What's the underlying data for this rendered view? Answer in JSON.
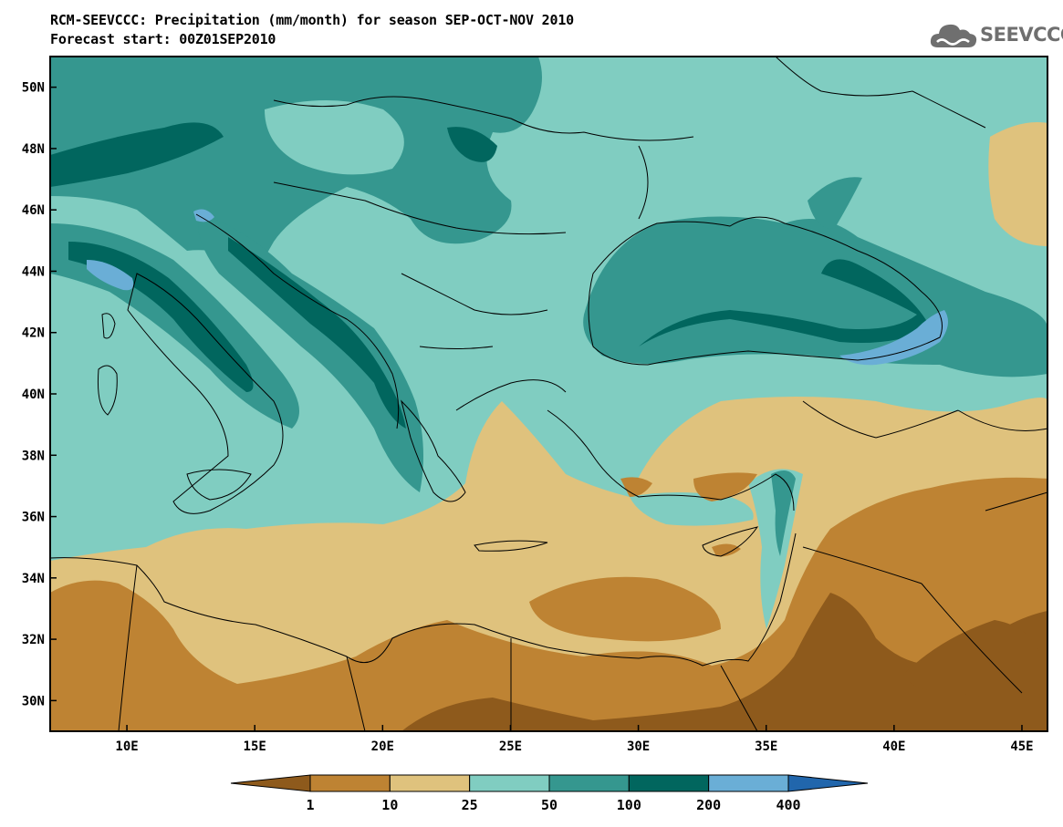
{
  "header": {
    "title_line1": "RCM-SEEVCCC: Precipitation (mm/month) for season SEP-OCT-NOV 2010",
    "title_line2": "Forecast start: 00Z01SEP2010"
  },
  "logo": {
    "text": "SEEVCCC",
    "icon": "cloud-logo-icon"
  },
  "map": {
    "lon_range": [
      7,
      46
    ],
    "lat_range": [
      29,
      51
    ],
    "lat_ticks": [
      "50N",
      "48N",
      "46N",
      "44N",
      "42N",
      "40N",
      "38N",
      "36N",
      "34N",
      "32N",
      "30N"
    ],
    "lon_ticks": [
      "10E",
      "15E",
      "20E",
      "25E",
      "30E",
      "35E",
      "40E",
      "45E"
    ]
  },
  "legend": {
    "labels": [
      "1",
      "10",
      "25",
      "50",
      "100",
      "200",
      "400"
    ],
    "colors": [
      "#8e5a1c",
      "#be8333",
      "#dfc27d",
      "#80cdc1",
      "#35978f",
      "#01665e",
      "#6aaed6",
      "#2166ac"
    ]
  }
}
